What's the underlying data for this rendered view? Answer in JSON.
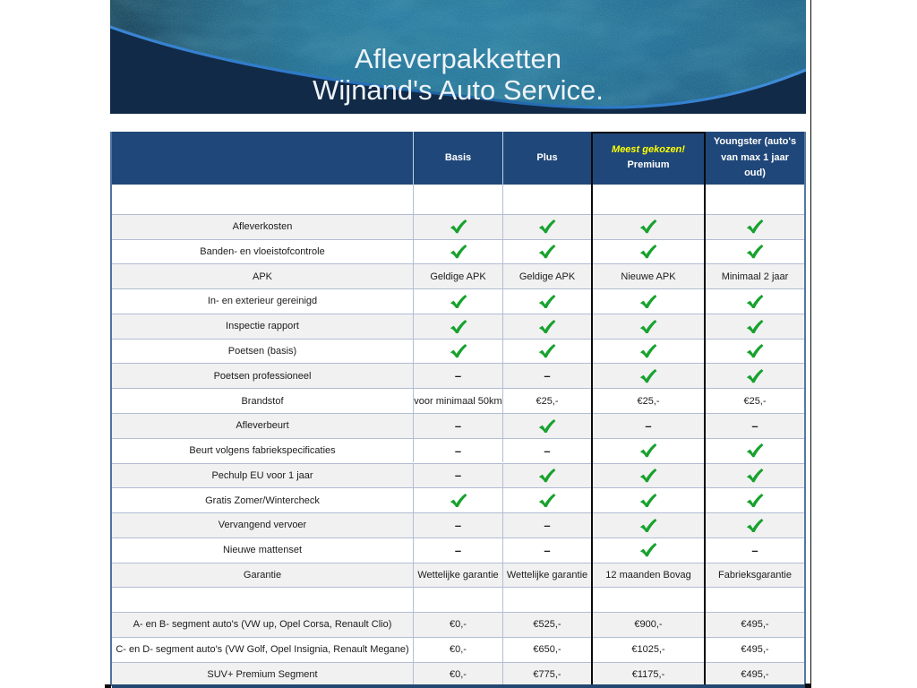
{
  "title": {
    "line1": "Afleverpakketten",
    "line2": "Wijnand's Auto Service."
  },
  "colors": {
    "header_blue": "#1f4779",
    "banner_navy": "#112a47",
    "swoosh_blue": "#2e7ac9",
    "check_green": "#17a22e",
    "row_gray": "#f1f1f2",
    "bottom_bar": "#244772",
    "highlight_yellow": "#ffff00"
  },
  "table": {
    "columns": [
      {
        "label": ""
      },
      {
        "label": "Basis"
      },
      {
        "label": "Plus"
      },
      {
        "label": "Premium",
        "note": "Meest gekozen!"
      },
      {
        "label": "Youngster (auto's van max 1 jaar oud)"
      }
    ],
    "rows": [
      {
        "label": "",
        "cells": [
          "",
          "",
          "",
          ""
        ],
        "spacer": "tall"
      },
      {
        "label": "Afleverkosten",
        "cells": [
          "check",
          "check",
          "check",
          "check"
        ]
      },
      {
        "label": "Banden- en vloeistofcontrole",
        "cells": [
          "check",
          "check",
          "check",
          "check"
        ]
      },
      {
        "label": "APK",
        "cells": [
          "Geldige APK",
          "Geldige APK",
          "Nieuwe APK",
          "Minimaal 2 jaar"
        ]
      },
      {
        "label": "In- en exterieur gereinigd",
        "cells": [
          "check",
          "check",
          "check",
          "check"
        ]
      },
      {
        "label": "Inspectie rapport",
        "cells": [
          "check",
          "check",
          "check",
          "check"
        ]
      },
      {
        "label": "Poetsen (basis)",
        "cells": [
          "check",
          "check",
          "check",
          "check"
        ]
      },
      {
        "label": "Poetsen professioneel",
        "cells": [
          "dash",
          "dash",
          "check",
          "check"
        ]
      },
      {
        "label": "Brandstof",
        "cells": [
          "voor minimaal 50km",
          "€25,-",
          "€25,-",
          "€25,-"
        ]
      },
      {
        "label": "Afleverbeurt",
        "cells": [
          "dash",
          "check",
          "dash",
          "dash"
        ]
      },
      {
        "label": "Beurt volgens fabriekspecificaties",
        "cells": [
          "dash",
          "dash",
          "check",
          "check"
        ]
      },
      {
        "label": "Pechulp EU voor 1 jaar",
        "cells": [
          "dash",
          "check",
          "check",
          "check"
        ]
      },
      {
        "label": "Gratis Zomer/Wintercheck",
        "cells": [
          "check",
          "check",
          "check",
          "check"
        ]
      },
      {
        "label": "Vervangend vervoer",
        "cells": [
          "dash",
          "dash",
          "check",
          "check"
        ]
      },
      {
        "label": "Nieuwe mattenset",
        "cells": [
          "dash",
          "dash",
          "check",
          "dash"
        ]
      },
      {
        "label": "Garantie",
        "cells": [
          "Wettelijke garantie",
          "Wettelijke garantie",
          "12 maanden Bovag",
          "Fabrieksgarantie"
        ]
      },
      {
        "label": "",
        "cells": [
          "",
          "",
          "",
          ""
        ],
        "spacer": "normal"
      },
      {
        "label": "A- en B- segment auto's (VW up, Opel Corsa, Renault Clio)",
        "cells": [
          "€0,-",
          "€525,-",
          "€900,-",
          "€495,-"
        ]
      },
      {
        "label": "C- en D- segment auto's (VW Golf, Opel Insignia, Renault Megane)",
        "cells": [
          "€0,-",
          "€650,-",
          "€1025,-",
          "€495,-"
        ]
      },
      {
        "label": "SUV+ Premium Segment",
        "cells": [
          "€0,-",
          "€775,-",
          "€1175,-",
          "€495,-"
        ]
      }
    ]
  }
}
